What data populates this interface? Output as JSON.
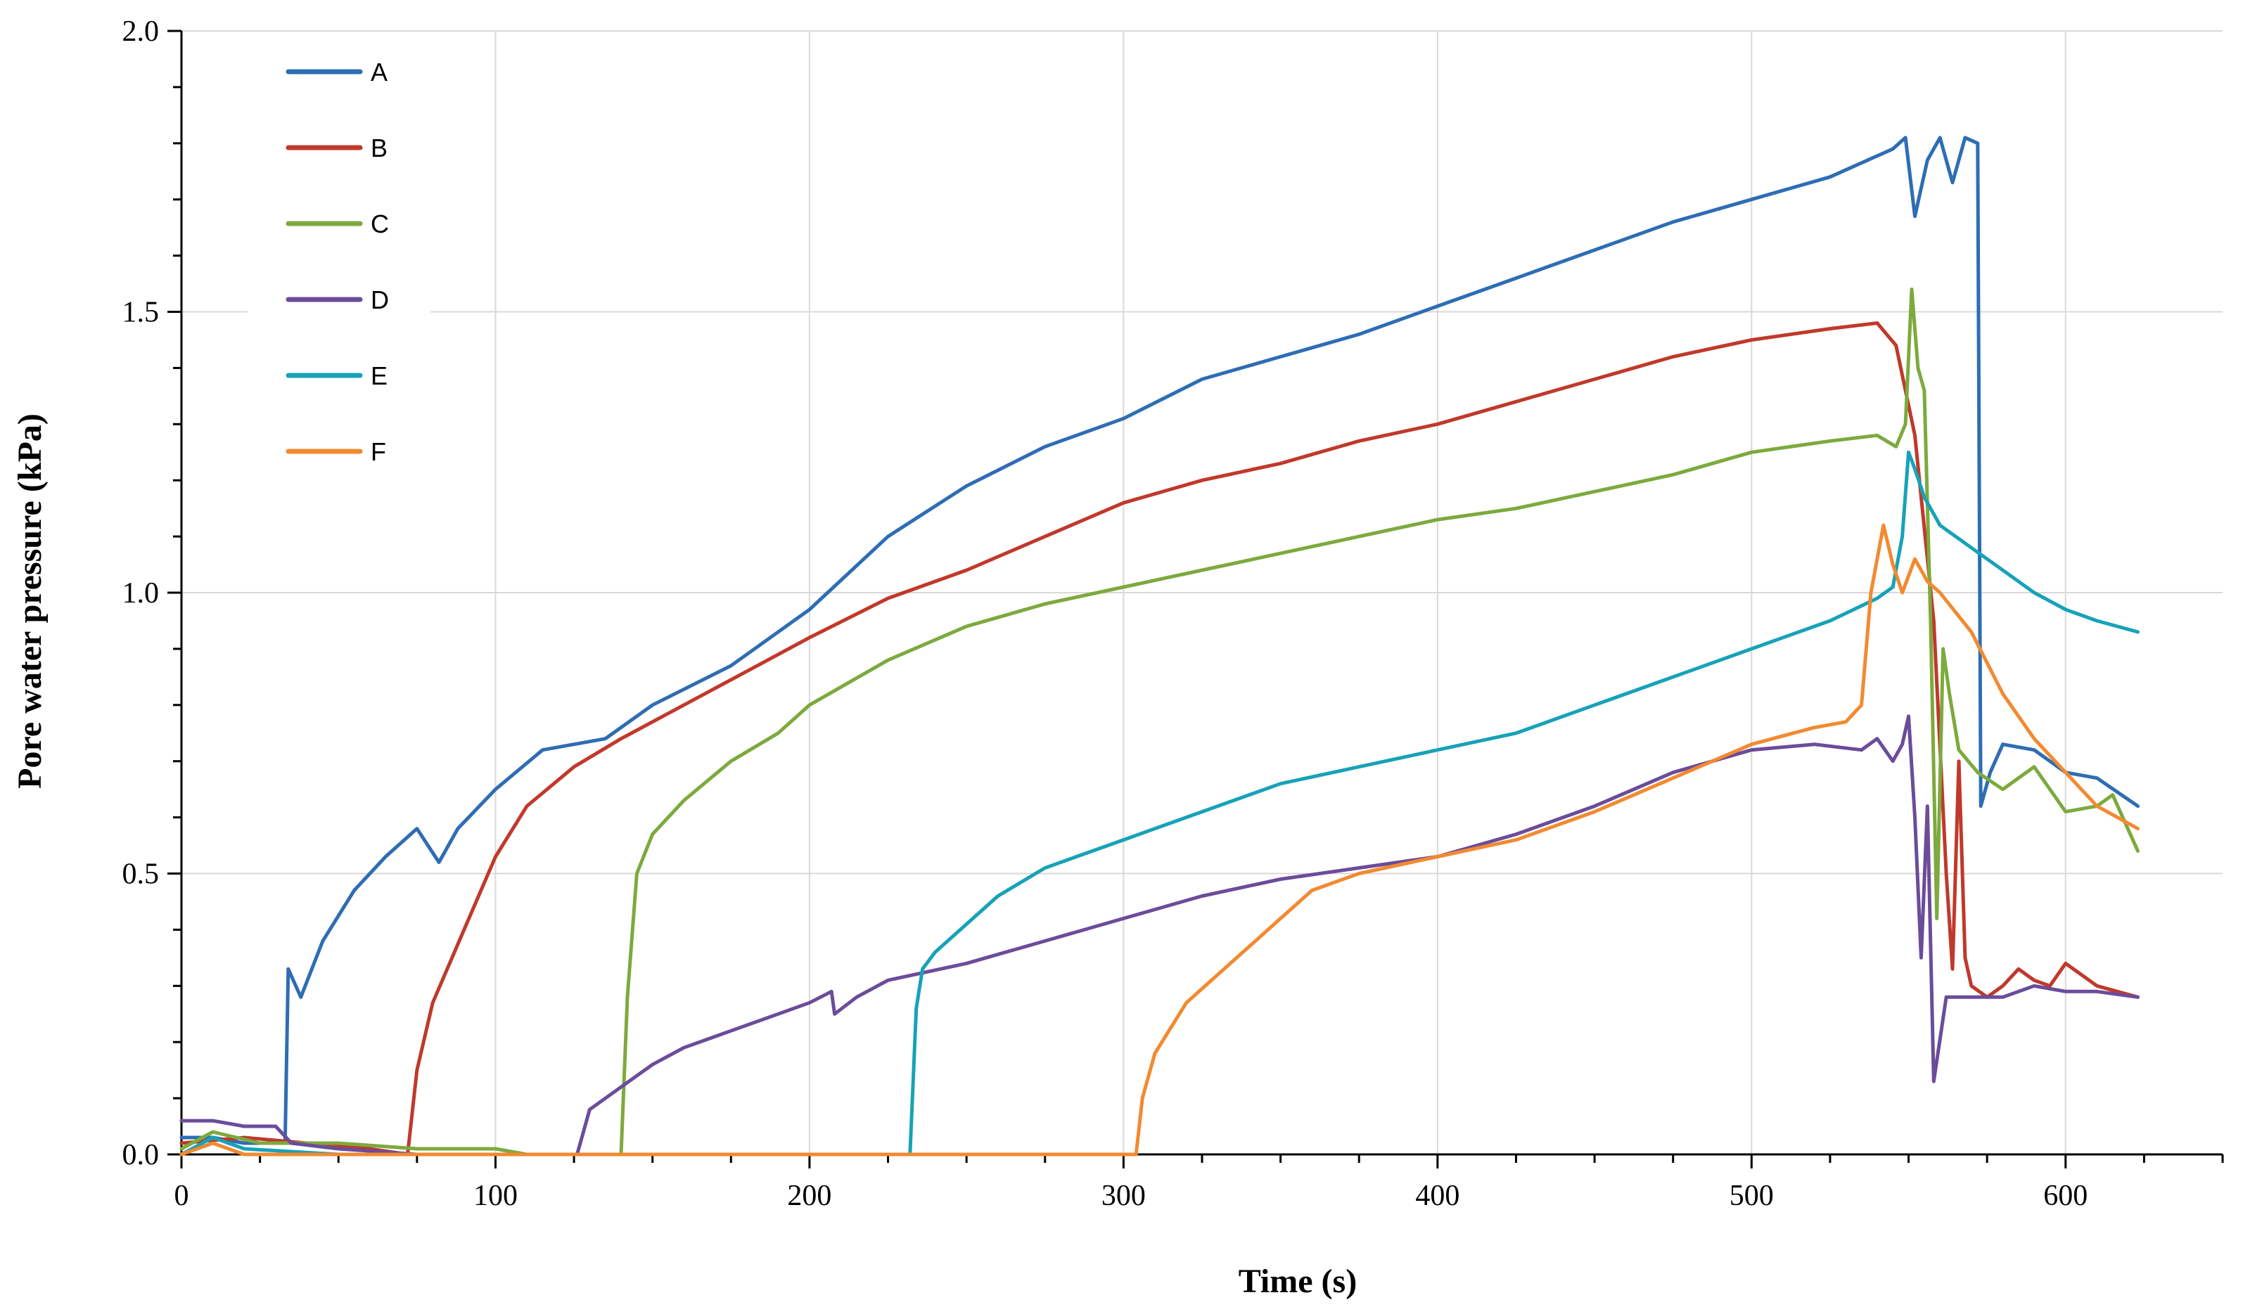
{
  "chart_data": {
    "type": "line",
    "title": "",
    "xlabel": "Time (s)",
    "ylabel": "Pore water pressure  (kPa)",
    "xlim": [
      0,
      650
    ],
    "ylim": [
      0,
      2.0
    ],
    "x_ticks": [
      0,
      100,
      200,
      300,
      400,
      500,
      600
    ],
    "y_ticks": [
      0.0,
      0.5,
      1.0,
      1.5,
      2.0
    ],
    "x_tick_labels": [
      "0",
      "100",
      "200",
      "300",
      "400",
      "500",
      "600"
    ],
    "y_tick_labels": [
      "0.0",
      "0.5",
      "1.0",
      "1.5",
      "2.0"
    ],
    "grid": true,
    "legend_position": "top-left",
    "series": [
      {
        "name": "A",
        "color": "#2E6DB4",
        "x": [
          0,
          10,
          20,
          30,
          33,
          34,
          38,
          45,
          55,
          65,
          75,
          82,
          88,
          100,
          115,
          125,
          135,
          150,
          175,
          200,
          225,
          250,
          275,
          300,
          325,
          350,
          375,
          400,
          425,
          450,
          475,
          500,
          525,
          545,
          549,
          552,
          556,
          560,
          564,
          568,
          572,
          573,
          576,
          580,
          590,
          600,
          610,
          623
        ],
        "y": [
          0.03,
          0.03,
          0.02,
          0.02,
          0.02,
          0.33,
          0.28,
          0.38,
          0.47,
          0.53,
          0.58,
          0.52,
          0.58,
          0.65,
          0.72,
          0.73,
          0.74,
          0.8,
          0.87,
          0.97,
          1.1,
          1.19,
          1.26,
          1.31,
          1.38,
          1.42,
          1.46,
          1.51,
          1.56,
          1.61,
          1.66,
          1.7,
          1.74,
          1.79,
          1.81,
          1.67,
          1.77,
          1.81,
          1.73,
          1.81,
          1.8,
          0.62,
          0.68,
          0.73,
          0.72,
          0.68,
          0.67,
          0.62
        ]
      },
      {
        "name": "B",
        "color": "#C0392B",
        "x": [
          0,
          20,
          40,
          60,
          72,
          75,
          80,
          90,
          100,
          110,
          125,
          140,
          160,
          180,
          200,
          225,
          250,
          275,
          300,
          325,
          350,
          375,
          400,
          425,
          450,
          475,
          500,
          525,
          540,
          546,
          552,
          558,
          562,
          564,
          566,
          568,
          570,
          575,
          580,
          585,
          590,
          595,
          600,
          610,
          623
        ],
        "y": [
          0.02,
          0.03,
          0.02,
          0.01,
          0.0,
          0.15,
          0.27,
          0.4,
          0.53,
          0.62,
          0.69,
          0.74,
          0.8,
          0.86,
          0.92,
          0.99,
          1.04,
          1.1,
          1.16,
          1.2,
          1.23,
          1.27,
          1.3,
          1.34,
          1.38,
          1.42,
          1.45,
          1.47,
          1.48,
          1.44,
          1.28,
          0.95,
          0.5,
          0.33,
          0.7,
          0.35,
          0.3,
          0.28,
          0.3,
          0.33,
          0.31,
          0.3,
          0.34,
          0.3,
          0.28
        ]
      },
      {
        "name": "C",
        "color": "#7CAA3D",
        "x": [
          0,
          10,
          25,
          50,
          75,
          100,
          110,
          120,
          140,
          142,
          145,
          150,
          160,
          175,
          190,
          200,
          225,
          250,
          275,
          300,
          325,
          350,
          375,
          400,
          425,
          450,
          475,
          500,
          525,
          540,
          546,
          549,
          551,
          553,
          555,
          557,
          559,
          561,
          563,
          566,
          572,
          580,
          590,
          600,
          610,
          615,
          623
        ],
        "y": [
          0.01,
          0.04,
          0.02,
          0.02,
          0.01,
          0.01,
          0.0,
          0.0,
          0.0,
          0.28,
          0.5,
          0.57,
          0.63,
          0.7,
          0.75,
          0.8,
          0.88,
          0.94,
          0.98,
          1.01,
          1.04,
          1.07,
          1.1,
          1.13,
          1.15,
          1.18,
          1.21,
          1.25,
          1.27,
          1.28,
          1.26,
          1.3,
          1.54,
          1.4,
          1.36,
          0.95,
          0.42,
          0.9,
          0.82,
          0.72,
          0.68,
          0.65,
          0.69,
          0.61,
          0.62,
          0.64,
          0.54
        ]
      },
      {
        "name": "D",
        "color": "#6B4C9A",
        "x": [
          0,
          10,
          20,
          30,
          35,
          50,
          75,
          100,
          120,
          126,
          130,
          140,
          150,
          160,
          175,
          190,
          200,
          207,
          208,
          215,
          225,
          250,
          275,
          300,
          325,
          350,
          375,
          400,
          425,
          450,
          475,
          500,
          520,
          535,
          540,
          545,
          548,
          550,
          552,
          554,
          556,
          558,
          562,
          570,
          580,
          590,
          600,
          610,
          623
        ],
        "y": [
          0.06,
          0.06,
          0.05,
          0.05,
          0.02,
          0.01,
          0.0,
          0.0,
          0.0,
          0.0,
          0.08,
          0.12,
          0.16,
          0.19,
          0.22,
          0.25,
          0.27,
          0.29,
          0.25,
          0.28,
          0.31,
          0.34,
          0.38,
          0.42,
          0.46,
          0.49,
          0.51,
          0.53,
          0.57,
          0.62,
          0.68,
          0.72,
          0.73,
          0.72,
          0.74,
          0.7,
          0.73,
          0.78,
          0.6,
          0.35,
          0.62,
          0.13,
          0.28,
          0.28,
          0.28,
          0.3,
          0.29,
          0.29,
          0.28
        ]
      },
      {
        "name": "E",
        "color": "#17A2B8",
        "x": [
          0,
          10,
          20,
          50,
          100,
          150,
          200,
          230,
          232,
          234,
          236,
          240,
          250,
          260,
          275,
          300,
          325,
          350,
          375,
          400,
          425,
          450,
          475,
          500,
          525,
          540,
          545,
          548,
          550,
          552,
          555,
          560,
          570,
          580,
          590,
          600,
          610,
          623
        ],
        "y": [
          0.0,
          0.03,
          0.01,
          0.0,
          0.0,
          0.0,
          0.0,
          0.0,
          0.0,
          0.26,
          0.33,
          0.36,
          0.41,
          0.46,
          0.51,
          0.56,
          0.61,
          0.66,
          0.69,
          0.72,
          0.75,
          0.8,
          0.85,
          0.9,
          0.95,
          0.99,
          1.01,
          1.1,
          1.25,
          1.22,
          1.17,
          1.12,
          1.08,
          1.04,
          1.0,
          0.97,
          0.95,
          0.93
        ]
      },
      {
        "name": "F",
        "color": "#F28A30",
        "x": [
          0,
          10,
          20,
          50,
          100,
          200,
          300,
          304,
          306,
          310,
          320,
          330,
          340,
          350,
          360,
          375,
          400,
          425,
          450,
          475,
          500,
          520,
          530,
          535,
          538,
          542,
          545,
          548,
          552,
          556,
          560,
          570,
          580,
          590,
          600,
          610,
          623
        ],
        "y": [
          0.0,
          0.02,
          0.0,
          0.0,
          0.0,
          0.0,
          0.0,
          0.0,
          0.1,
          0.18,
          0.27,
          0.32,
          0.37,
          0.42,
          0.47,
          0.5,
          0.53,
          0.56,
          0.61,
          0.67,
          0.73,
          0.76,
          0.77,
          0.8,
          1.0,
          1.12,
          1.05,
          1.0,
          1.06,
          1.02,
          1.0,
          0.93,
          0.82,
          0.74,
          0.68,
          0.62,
          0.58
        ]
      }
    ]
  }
}
